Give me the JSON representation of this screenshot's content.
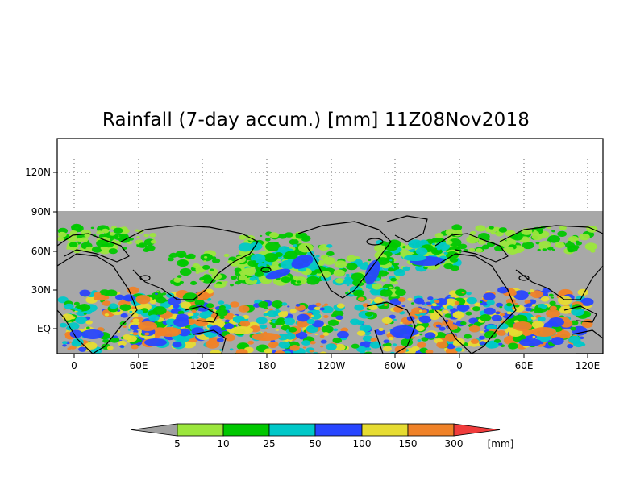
{
  "title": "Rainfall (7-day accum.) [mm] 11Z08Nov2018",
  "map": {
    "y_axis_labels": [
      "120N",
      "90N",
      "60N",
      "30N",
      "EQ"
    ],
    "x_axis_labels": [
      "0",
      "60E",
      "120E",
      "180",
      "120W",
      "60W",
      "0",
      "60E",
      "120E"
    ],
    "no_data_color": "#a8a8a8",
    "coastline_color": "#000000",
    "grid": "dotted"
  },
  "colorbar": {
    "unit": "[mm]",
    "levels": [
      "5",
      "10",
      "25",
      "50",
      "100",
      "150",
      "300"
    ],
    "colors": {
      "below_5": "#a0a0a0",
      "5_10": "#9be63c",
      "10_25": "#00c800",
      "25_50": "#00c8c8",
      "50_100": "#2846ff",
      "100_150": "#e6dc32",
      "150_300": "#f08228",
      "above_300": "#f03c3c"
    }
  }
}
